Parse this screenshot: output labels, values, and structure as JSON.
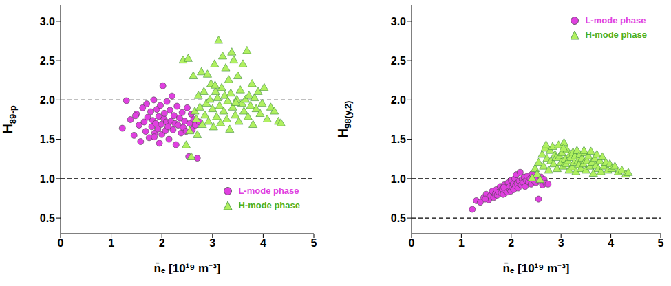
{
  "chart_data": [
    {
      "type": "scatter",
      "x_label": "n̄ₑ [10¹⁹ m⁻³]",
      "y_label": "H89-p",
      "xlim": [
        0,
        5
      ],
      "xticks": [
        0,
        1,
        2,
        3,
        4,
        5
      ],
      "ylim": [
        0.3,
        3.2
      ],
      "yticks": [
        0.5,
        {
          "value": 1,
          "label": "1.0"
        },
        1.5,
        {
          "value": 2,
          "label": "2.0"
        },
        2.5,
        {
          "value": 3,
          "label": "3.0"
        }
      ],
      "reference_lines": [
        1,
        2
      ],
      "legend": "lower right",
      "series": [
        {
          "name": "L-mode phase",
          "color": "#e040e0",
          "marker": "circle",
          "x": [
            1.22,
            1.3,
            1.38,
            1.45,
            1.5,
            1.55,
            1.58,
            1.62,
            1.65,
            1.68,
            1.7,
            1.72,
            1.75,
            1.78,
            1.8,
            1.82,
            1.84,
            1.86,
            1.88,
            1.9,
            1.92,
            1.94,
            1.95,
            1.97,
            1.99,
            2.0,
            2.02,
            2.04,
            2.05,
            2.07,
            2.09,
            2.1,
            2.12,
            2.14,
            2.16,
            2.18,
            2.2,
            2.22,
            2.24,
            2.26,
            2.28,
            2.3,
            2.32,
            2.35,
            2.38,
            2.4,
            2.42,
            2.45,
            2.48,
            2.5,
            2.53,
            2.55,
            2.58,
            2.6,
            2.63,
            2.66,
            2.7,
            2.74,
            1.48,
            1.85
          ],
          "values": [
            1.64,
            1.99,
            1.75,
            1.55,
            1.82,
            1.68,
            1.47,
            1.9,
            1.72,
            1.6,
            1.95,
            1.78,
            1.52,
            1.85,
            1.66,
            1.74,
            2.0,
            1.58,
            1.7,
            1.88,
            1.63,
            1.79,
            1.45,
            1.93,
            1.69,
            1.56,
            2.18,
            1.76,
            1.83,
            1.61,
            1.72,
            1.98,
            1.66,
            1.5,
            1.87,
            1.73,
            2.05,
            1.62,
            1.8,
            1.7,
            1.43,
            1.92,
            1.68,
            1.77,
            1.58,
            1.84,
            1.65,
            1.73,
            1.6,
            1.9,
            1.28,
            1.7,
            1.82,
            1.62,
            1.75,
            1.68,
            1.26,
            1.72,
            1.8,
            1.53
          ]
        },
        {
          "name": "H-mode phase",
          "color": "#b0f060",
          "marker": "triangle",
          "x": [
            2.42,
            2.48,
            2.52,
            2.55,
            2.58,
            2.62,
            2.65,
            2.68,
            2.72,
            2.75,
            2.78,
            2.8,
            2.83,
            2.85,
            2.88,
            2.9,
            2.92,
            2.95,
            2.97,
            3.0,
            3.02,
            3.04,
            3.06,
            3.08,
            3.1,
            3.12,
            3.14,
            3.16,
            3.18,
            3.2,
            3.22,
            3.24,
            3.26,
            3.28,
            3.3,
            3.32,
            3.34,
            3.36,
            3.38,
            3.4,
            3.42,
            3.45,
            3.48,
            3.5,
            3.52,
            3.55,
            3.58,
            3.6,
            3.62,
            3.65,
            3.68,
            3.7,
            3.72,
            3.75,
            3.78,
            3.8,
            3.83,
            3.86,
            3.9,
            3.94,
            3.98,
            4.02,
            4.08,
            4.15,
            4.22,
            4.3,
            4.35,
            2.7,
            3.05,
            3.46
          ],
          "values": [
            2.5,
            1.42,
            2.52,
            1.6,
            1.27,
            2.3,
            1.85,
            1.75,
            2.05,
            1.9,
            2.35,
            1.68,
            2.1,
            1.8,
            1.95,
            2.32,
            1.72,
            2.0,
            2.2,
            1.88,
            1.65,
            2.45,
            2.1,
            1.78,
            2.02,
            2.75,
            1.92,
            1.7,
            2.15,
            2.55,
            1.85,
            2.05,
            2.4,
            1.75,
            1.98,
            2.25,
            1.62,
            2.08,
            2.6,
            1.9,
            2.5,
            1.8,
            2.0,
            2.3,
            1.72,
            2.12,
            1.95,
            2.45,
            1.85,
            2.0,
            2.62,
            1.78,
            2.05,
            1.92,
            2.2,
            1.68,
            2.02,
            1.88,
            2.1,
            1.82,
            1.95,
            2.15,
            1.75,
            1.9,
            1.85,
            1.72,
            1.7,
            1.55,
            2.18,
            1.96
          ]
        }
      ]
    },
    {
      "type": "scatter",
      "x_label": "n̄ₑ [10¹⁹ m⁻³]",
      "y_label": "H98(y,2)",
      "xlim": [
        0,
        5
      ],
      "xticks": [
        0,
        1,
        2,
        3,
        4,
        5
      ],
      "ylim": [
        0.3,
        3.2
      ],
      "yticks": [
        0.5,
        {
          "value": 1,
          "label": "1.0"
        },
        1.5,
        {
          "value": 2,
          "label": "2.0"
        },
        2.5,
        {
          "value": 3,
          "label": "3.0"
        }
      ],
      "reference_lines": [
        0.5,
        1
      ],
      "legend": "upper right",
      "series": [
        {
          "name": "L-mode phase",
          "color": "#e040e0",
          "marker": "circle",
          "x": [
            1.22,
            1.3,
            1.38,
            1.45,
            1.5,
            1.55,
            1.58,
            1.62,
            1.65,
            1.68,
            1.7,
            1.72,
            1.75,
            1.78,
            1.8,
            1.82,
            1.84,
            1.86,
            1.88,
            1.9,
            1.92,
            1.94,
            1.95,
            1.97,
            1.99,
            2.0,
            2.02,
            2.04,
            2.05,
            2.07,
            2.09,
            2.1,
            2.12,
            2.14,
            2.16,
            2.18,
            2.2,
            2.22,
            2.24,
            2.26,
            2.28,
            2.3,
            2.32,
            2.35,
            2.38,
            2.4,
            2.42,
            2.45,
            2.48,
            2.5,
            2.53,
            2.55,
            2.58,
            2.6,
            2.63,
            2.66,
            2.7,
            2.74,
            1.48,
            1.85
          ],
          "values": [
            0.61,
            0.72,
            0.7,
            0.76,
            0.8,
            0.73,
            0.78,
            0.84,
            0.76,
            0.8,
            0.86,
            0.79,
            0.83,
            0.9,
            0.82,
            0.87,
            0.8,
            0.92,
            0.85,
            0.88,
            0.83,
            0.95,
            0.87,
            0.9,
            0.84,
            0.98,
            0.89,
            0.93,
            0.86,
            1.0,
            0.91,
            1.05,
            0.94,
            0.88,
            0.97,
            1.08,
            0.92,
            0.99,
            0.95,
            1.02,
            0.9,
            0.98,
            1.03,
            0.96,
            1.0,
            0.93,
            1.06,
            0.98,
            1.01,
            0.95,
            1.0,
            0.74,
            0.97,
            1.02,
            0.92,
            0.99,
            0.94,
            0.93,
            0.74,
            0.89
          ]
        },
        {
          "name": "H-mode phase",
          "color": "#b0f060",
          "marker": "triangle",
          "x": [
            2.42,
            2.48,
            2.52,
            2.55,
            2.58,
            2.62,
            2.65,
            2.68,
            2.72,
            2.75,
            2.78,
            2.8,
            2.83,
            2.85,
            2.88,
            2.9,
            2.92,
            2.95,
            2.97,
            3.0,
            3.02,
            3.04,
            3.06,
            3.08,
            3.1,
            3.12,
            3.14,
            3.16,
            3.18,
            3.2,
            3.22,
            3.24,
            3.26,
            3.28,
            3.3,
            3.32,
            3.34,
            3.36,
            3.38,
            3.4,
            3.42,
            3.45,
            3.48,
            3.5,
            3.52,
            3.55,
            3.58,
            3.6,
            3.62,
            3.65,
            3.68,
            3.7,
            3.72,
            3.75,
            3.78,
            3.8,
            3.83,
            3.86,
            3.9,
            3.94,
            3.98,
            4.02,
            4.08,
            4.15,
            4.22,
            4.3,
            4.35,
            2.7,
            3.05,
            3.46
          ],
          "values": [
            1.0,
            1.12,
            1.05,
            1.2,
            0.98,
            1.3,
            1.15,
            1.38,
            1.25,
            1.1,
            1.35,
            1.22,
            1.4,
            1.18,
            1.3,
            1.26,
            1.12,
            1.42,
            1.28,
            1.2,
            1.32,
            1.15,
            1.45,
            1.24,
            1.18,
            1.36,
            1.22,
            1.1,
            1.3,
            1.26,
            1.14,
            1.33,
            1.2,
            1.28,
            1.08,
            1.35,
            1.22,
            1.17,
            1.3,
            1.12,
            1.25,
            1.18,
            1.32,
            1.1,
            1.22,
            1.28,
            1.15,
            1.34,
            1.2,
            1.06,
            1.25,
            1.16,
            1.3,
            1.12,
            1.22,
            1.08,
            1.27,
            1.15,
            1.2,
            1.1,
            1.18,
            1.12,
            1.15,
            1.08,
            1.1,
            1.05,
            1.07,
            1.42,
            1.38,
            1.35
          ]
        }
      ]
    }
  ]
}
